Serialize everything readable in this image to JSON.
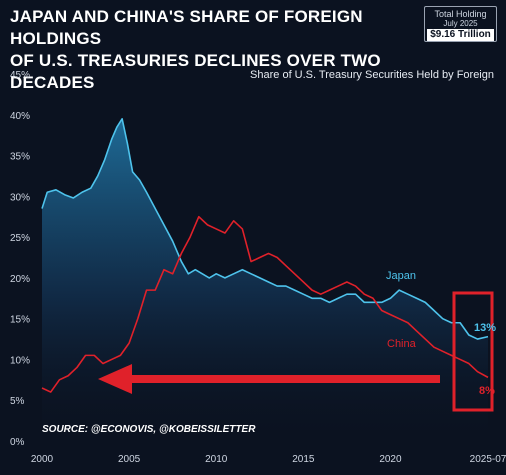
{
  "header": {
    "title_line1": "JAPAN AND CHINA'S SHARE OF FOREIGN HOLDINGS",
    "title_line2": "OF U.S. TREASURIES DECLINES OVER TWO DECADES",
    "holding_label1": "Total Holding",
    "holding_label2": "July 2025",
    "holding_value": "$9.16 Trillion"
  },
  "chart_data": {
    "type": "area",
    "subtitle": "Share of U.S. Treasury Securities Held by Foreign",
    "source": "SOURCE: @ECONOVIS, @KOBEISSILETTER",
    "xlim": [
      2000,
      2025.6
    ],
    "ylim": [
      0,
      45
    ],
    "x_ticks": [
      2000,
      2005,
      2010,
      2015,
      2020,
      2025.6
    ],
    "x_tick_labels": [
      "2000",
      "2005",
      "2010",
      "2015",
      "2020",
      "2025-07"
    ],
    "y_ticks": [
      0,
      5,
      10,
      15,
      20,
      25,
      30,
      35,
      40,
      45
    ],
    "y_tick_labels": [
      "0%",
      "5%",
      "10%",
      "15%",
      "20%",
      "25%",
      "30%",
      "35%",
      "40%",
      "45%"
    ],
    "grid": false,
    "end_labels": {
      "japan": "13%",
      "china": "8%"
    },
    "colors": {
      "japan": "#4ec3ec",
      "china": "#e0212a",
      "background": "#0b1220",
      "highlight_box": "#e0212a",
      "arrow": "#e0212a"
    },
    "annotations": [
      "red highlight box around 2025 endpoints",
      "red arrow pointing left toward 2000"
    ],
    "series": [
      {
        "name": "Japan",
        "x": [
          2000,
          2000.3,
          2000.8,
          2001.3,
          2001.8,
          2002.3,
          2002.8,
          2003.2,
          2003.6,
          2004.0,
          2004.3,
          2004.6,
          2004.9,
          2005.2,
          2005.6,
          2006.0,
          2006.5,
          2007.0,
          2007.5,
          2008.0,
          2008.4,
          2008.8,
          2009.2,
          2009.6,
          2010.0,
          2010.5,
          2011.0,
          2011.5,
          2012.0,
          2012.5,
          2013.0,
          2013.5,
          2014.0,
          2014.5,
          2015.0,
          2015.5,
          2016.0,
          2016.5,
          2017.0,
          2017.5,
          2018.0,
          2018.5,
          2019.0,
          2019.5,
          2020.0,
          2020.5,
          2021.0,
          2021.5,
          2022.0,
          2022.5,
          2023.0,
          2023.5,
          2024.0,
          2024.5,
          2025.0,
          2025.6
        ],
        "values": [
          28.5,
          30.5,
          30.8,
          30.2,
          29.8,
          30.5,
          31.0,
          32.5,
          34.5,
          37.0,
          38.5,
          39.5,
          36.5,
          33.0,
          32.0,
          30.5,
          28.5,
          26.5,
          24.5,
          22.0,
          20.5,
          21.0,
          20.5,
          20.0,
          20.5,
          20.0,
          20.5,
          21.0,
          20.5,
          20.0,
          19.5,
          19.0,
          19.0,
          18.5,
          18.0,
          17.5,
          17.5,
          17.0,
          17.5,
          18.0,
          18.0,
          17.0,
          17.0,
          17.0,
          17.5,
          18.5,
          18.0,
          17.5,
          17.0,
          16.0,
          15.0,
          14.5,
          14.5,
          13.0,
          12.5,
          12.8
        ]
      },
      {
        "name": "China",
        "x": [
          2000,
          2000.5,
          2001.0,
          2001.5,
          2002.0,
          2002.5,
          2003.0,
          2003.5,
          2004.0,
          2004.5,
          2005.0,
          2005.5,
          2006.0,
          2006.5,
          2007.0,
          2007.5,
          2008.0,
          2008.5,
          2009.0,
          2009.5,
          2010.0,
          2010.5,
          2011.0,
          2011.5,
          2012.0,
          2012.5,
          2013.0,
          2013.5,
          2014.0,
          2014.5,
          2015.0,
          2015.5,
          2016.0,
          2016.5,
          2017.0,
          2017.5,
          2018.0,
          2018.5,
          2019.0,
          2019.5,
          2020.0,
          2020.5,
          2021.0,
          2021.5,
          2022.0,
          2022.5,
          2023.0,
          2023.5,
          2024.0,
          2024.5,
          2025.0,
          2025.6
        ],
        "values": [
          6.5,
          6.0,
          7.5,
          8.0,
          9.0,
          10.5,
          10.5,
          9.5,
          10.0,
          10.5,
          12.0,
          15.0,
          18.5,
          18.5,
          21.0,
          20.5,
          23.0,
          25.0,
          27.5,
          26.5,
          26.0,
          25.5,
          27.0,
          26.0,
          22.0,
          22.5,
          23.0,
          22.5,
          21.5,
          20.5,
          19.5,
          18.5,
          18.0,
          18.5,
          19.0,
          19.5,
          19.0,
          18.0,
          17.5,
          16.0,
          15.5,
          15.0,
          14.5,
          13.5,
          12.5,
          11.5,
          11.0,
          10.5,
          10.0,
          9.5,
          8.5,
          7.8
        ]
      }
    ]
  }
}
